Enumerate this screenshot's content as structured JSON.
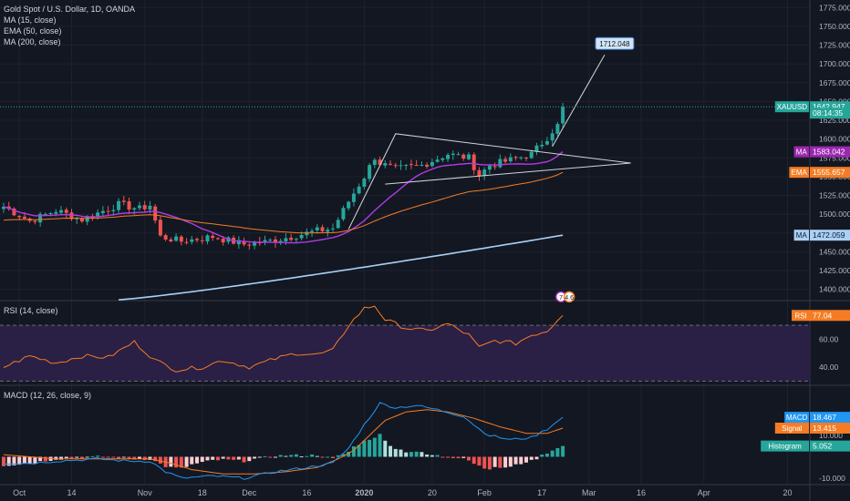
{
  "legend": {
    "main": [
      "Gold Spot / U.S. Dollar, 1D, OANDA",
      "MA (15, close)",
      "EMA (50, close)",
      "MA (200, close)"
    ],
    "rsi": "RSI (14, close)",
    "macd": "MACD (12, 26, close, 9)"
  },
  "colors": {
    "bg": "#131722",
    "grid": "#1e222d",
    "up": "#26a69a",
    "down": "#ef5350",
    "ma15": "#b13be6",
    "ema50": "#f57c24",
    "ma200": "#a9d0f5",
    "rsi": "#f57c24",
    "macd": "#2196f3",
    "signal": "#f57c24",
    "hist_up_strong": "#26a69a",
    "hist_up_weak": "#b2dfdb",
    "hist_down_strong": "#ef5350",
    "hist_down_weak": "#ffcdd2",
    "drawing": "#d1d4dc",
    "xauusd_label": "#26a69a"
  },
  "price_axis": {
    "ticks": [
      "1775.000",
      "1750.000",
      "1725.000",
      "1700.000",
      "1675.000",
      "1650.000",
      "1625.000",
      "1600.000",
      "1575.000",
      "1550.000",
      "1525.000",
      "1500.000",
      "1475.000",
      "1450.000",
      "1425.000",
      "1400.000"
    ],
    "tick_values": [
      1775,
      1750,
      1725,
      1700,
      1675,
      1650,
      1625,
      1600,
      1575,
      1550,
      1525,
      1500,
      1475,
      1450,
      1425,
      1400
    ],
    "labels": [
      {
        "name": "xauusd-price-label",
        "tag": "XAUUSD",
        "text": "1642.947",
        "value": 1642.947,
        "color": "#26a69a"
      },
      {
        "name": "countdown-label",
        "tag": "",
        "text": "08:14:35",
        "value": 1634.5,
        "color": "#26a69a"
      },
      {
        "name": "ma15-price-label",
        "tag": "MA",
        "text": "1583.042",
        "value": 1583.042,
        "color": "#9c27b0"
      },
      {
        "name": "ema50-price-label",
        "tag": "EMA",
        "text": "1555.657",
        "value": 1555.657,
        "color": "#f57c24"
      },
      {
        "name": "ma200-price-label",
        "tag": "MA",
        "text": "1472.059",
        "value": 1472.059,
        "color": "#a9d0f5",
        "dark": true
      }
    ]
  },
  "rsi_axis": {
    "ticks": [
      "60.00",
      "40.00"
    ],
    "tick_values": [
      60,
      40
    ],
    "label": {
      "tag": "RSI",
      "text": "77.04",
      "value": 77.04
    }
  },
  "macd_axis": {
    "ticks": [
      "10.000",
      "-10.000"
    ],
    "tick_values": [
      10,
      -10
    ],
    "labels": [
      {
        "name": "macd-label",
        "tag": "MACD",
        "text": "18.467",
        "value": 18.467,
        "color": "#2196f3"
      },
      {
        "name": "signal-label",
        "tag": "Signal",
        "text": "13.415",
        "value": 13.415,
        "color": "#f57c24"
      },
      {
        "name": "histogram-label",
        "tag": "Histogram",
        "text": "5.052",
        "value": 5.052,
        "color": "#26a69a"
      }
    ]
  },
  "time_axis": [
    {
      "label": "Oct",
      "i": 3,
      "bold": false
    },
    {
      "label": "14",
      "i": 13,
      "bold": false
    },
    {
      "label": "Nov",
      "i": 27,
      "bold": false
    },
    {
      "label": "18",
      "i": 38,
      "bold": false
    },
    {
      "label": "Dec",
      "i": 47,
      "bold": false
    },
    {
      "label": "16",
      "i": 58,
      "bold": false
    },
    {
      "label": "2020",
      "i": 69,
      "bold": true
    },
    {
      "label": "20",
      "i": 82,
      "bold": false
    },
    {
      "label": "Feb",
      "i": 92,
      "bold": false
    },
    {
      "label": "17",
      "i": 103,
      "bold": false
    },
    {
      "label": "Mar",
      "i": 112,
      "bold": false
    },
    {
      "label": "16",
      "i": 122,
      "bold": false
    },
    {
      "label": "Apr",
      "i": 134,
      "bold": false
    },
    {
      "label": "20",
      "i": 150,
      "bold": false
    }
  ],
  "callout": {
    "text": "1712.048",
    "value": 1712.048
  },
  "event_badges": [
    "7",
    "4.6"
  ],
  "chart_data": [
    {
      "type": "candlestick",
      "title": "Gold Spot / U.S. Dollar, 1D, OANDA",
      "ylim": [
        1385,
        1785
      ],
      "key_points": [
        {
          "i": 0,
          "close": 1510
        },
        {
          "i": 5,
          "close": 1491
        },
        {
          "i": 10,
          "close": 1505
        },
        {
          "i": 15,
          "close": 1493
        },
        {
          "i": 22,
          "close": 1513
        },
        {
          "i": 26,
          "close": 1507
        },
        {
          "i": 28,
          "close": 1512
        },
        {
          "i": 30,
          "close": 1470
        },
        {
          "i": 34,
          "close": 1464
        },
        {
          "i": 40,
          "close": 1470
        },
        {
          "i": 46,
          "close": 1460
        },
        {
          "i": 50,
          "close": 1463
        },
        {
          "i": 55,
          "close": 1470
        },
        {
          "i": 60,
          "close": 1478
        },
        {
          "i": 63,
          "close": 1481
        },
        {
          "i": 66,
          "close": 1517
        },
        {
          "i": 69,
          "close": 1550
        },
        {
          "i": 71,
          "close": 1576
        },
        {
          "i": 72,
          "close": 1568
        },
        {
          "i": 75,
          "close": 1560
        },
        {
          "i": 80,
          "close": 1565
        },
        {
          "i": 85,
          "close": 1580
        },
        {
          "i": 89,
          "close": 1575
        },
        {
          "i": 91,
          "close": 1552
        },
        {
          "i": 93,
          "close": 1565
        },
        {
          "i": 97,
          "close": 1572
        },
        {
          "i": 101,
          "close": 1580
        },
        {
          "i": 104,
          "close": 1602
        },
        {
          "i": 106,
          "close": 1620
        },
        {
          "i": 107,
          "close": 1642.9
        }
      ],
      "overlays": [
        {
          "name": "MA (15, close)",
          "last": 1583.042
        },
        {
          "name": "EMA (50, close)",
          "last": 1555.657
        },
        {
          "name": "MA (200, close)",
          "last": 1472.059
        }
      ]
    },
    {
      "type": "line",
      "title": "RSI (14, close)",
      "ylim": [
        27,
        87
      ],
      "levels": [
        70,
        30
      ],
      "key_points": [
        [
          0,
          40
        ],
        [
          5,
          48
        ],
        [
          10,
          43
        ],
        [
          15,
          48
        ],
        [
          20,
          47
        ],
        [
          25,
          58
        ],
        [
          29,
          45
        ],
        [
          33,
          38
        ],
        [
          38,
          40
        ],
        [
          42,
          45
        ],
        [
          47,
          40
        ],
        [
          52,
          46
        ],
        [
          56,
          50
        ],
        [
          60,
          49
        ],
        [
          63,
          52
        ],
        [
          66,
          70
        ],
        [
          69,
          82
        ],
        [
          71,
          84
        ],
        [
          73,
          74
        ],
        [
          77,
          68
        ],
        [
          81,
          66
        ],
        [
          85,
          71
        ],
        [
          89,
          63
        ],
        [
          91,
          54
        ],
        [
          94,
          59
        ],
        [
          98,
          57
        ],
        [
          101,
          63
        ],
        [
          104,
          66
        ],
        [
          107,
          77.04
        ]
      ]
    },
    {
      "type": "bar+line",
      "title": "MACD (12, 26, close, 9)",
      "ylim": [
        -13,
        33
      ],
      "macd_points": [
        [
          0,
          -3
        ],
        [
          5,
          -3
        ],
        [
          10,
          -2
        ],
        [
          18,
          -1
        ],
        [
          24,
          -2
        ],
        [
          28,
          -2
        ],
        [
          31,
          -7
        ],
        [
          34,
          -10
        ],
        [
          40,
          -9
        ],
        [
          46,
          -10
        ],
        [
          52,
          -7
        ],
        [
          58,
          -5
        ],
        [
          63,
          -3
        ],
        [
          66,
          4
        ],
        [
          69,
          15
        ],
        [
          72,
          25
        ],
        [
          75,
          23
        ],
        [
          79,
          24
        ],
        [
          83,
          22
        ],
        [
          88,
          19
        ],
        [
          91,
          13
        ],
        [
          93,
          10
        ],
        [
          97,
          8
        ],
        [
          101,
          9
        ],
        [
          104,
          13
        ],
        [
          107,
          18.467
        ]
      ],
      "signal_points": [
        [
          0,
          1
        ],
        [
          10,
          -1
        ],
        [
          20,
          -1
        ],
        [
          28,
          -1
        ],
        [
          32,
          -3
        ],
        [
          36,
          -6
        ],
        [
          42,
          -8
        ],
        [
          48,
          -8
        ],
        [
          54,
          -7
        ],
        [
          60,
          -5
        ],
        [
          64,
          -1
        ],
        [
          67,
          3
        ],
        [
          70,
          10
        ],
        [
          73,
          17
        ],
        [
          77,
          21
        ],
        [
          81,
          22
        ],
        [
          85,
          21
        ],
        [
          90,
          18
        ],
        [
          95,
          14
        ],
        [
          100,
          11
        ],
        [
          104,
          11
        ],
        [
          107,
          13.415
        ]
      ],
      "histogram_last": 5.052
    }
  ]
}
